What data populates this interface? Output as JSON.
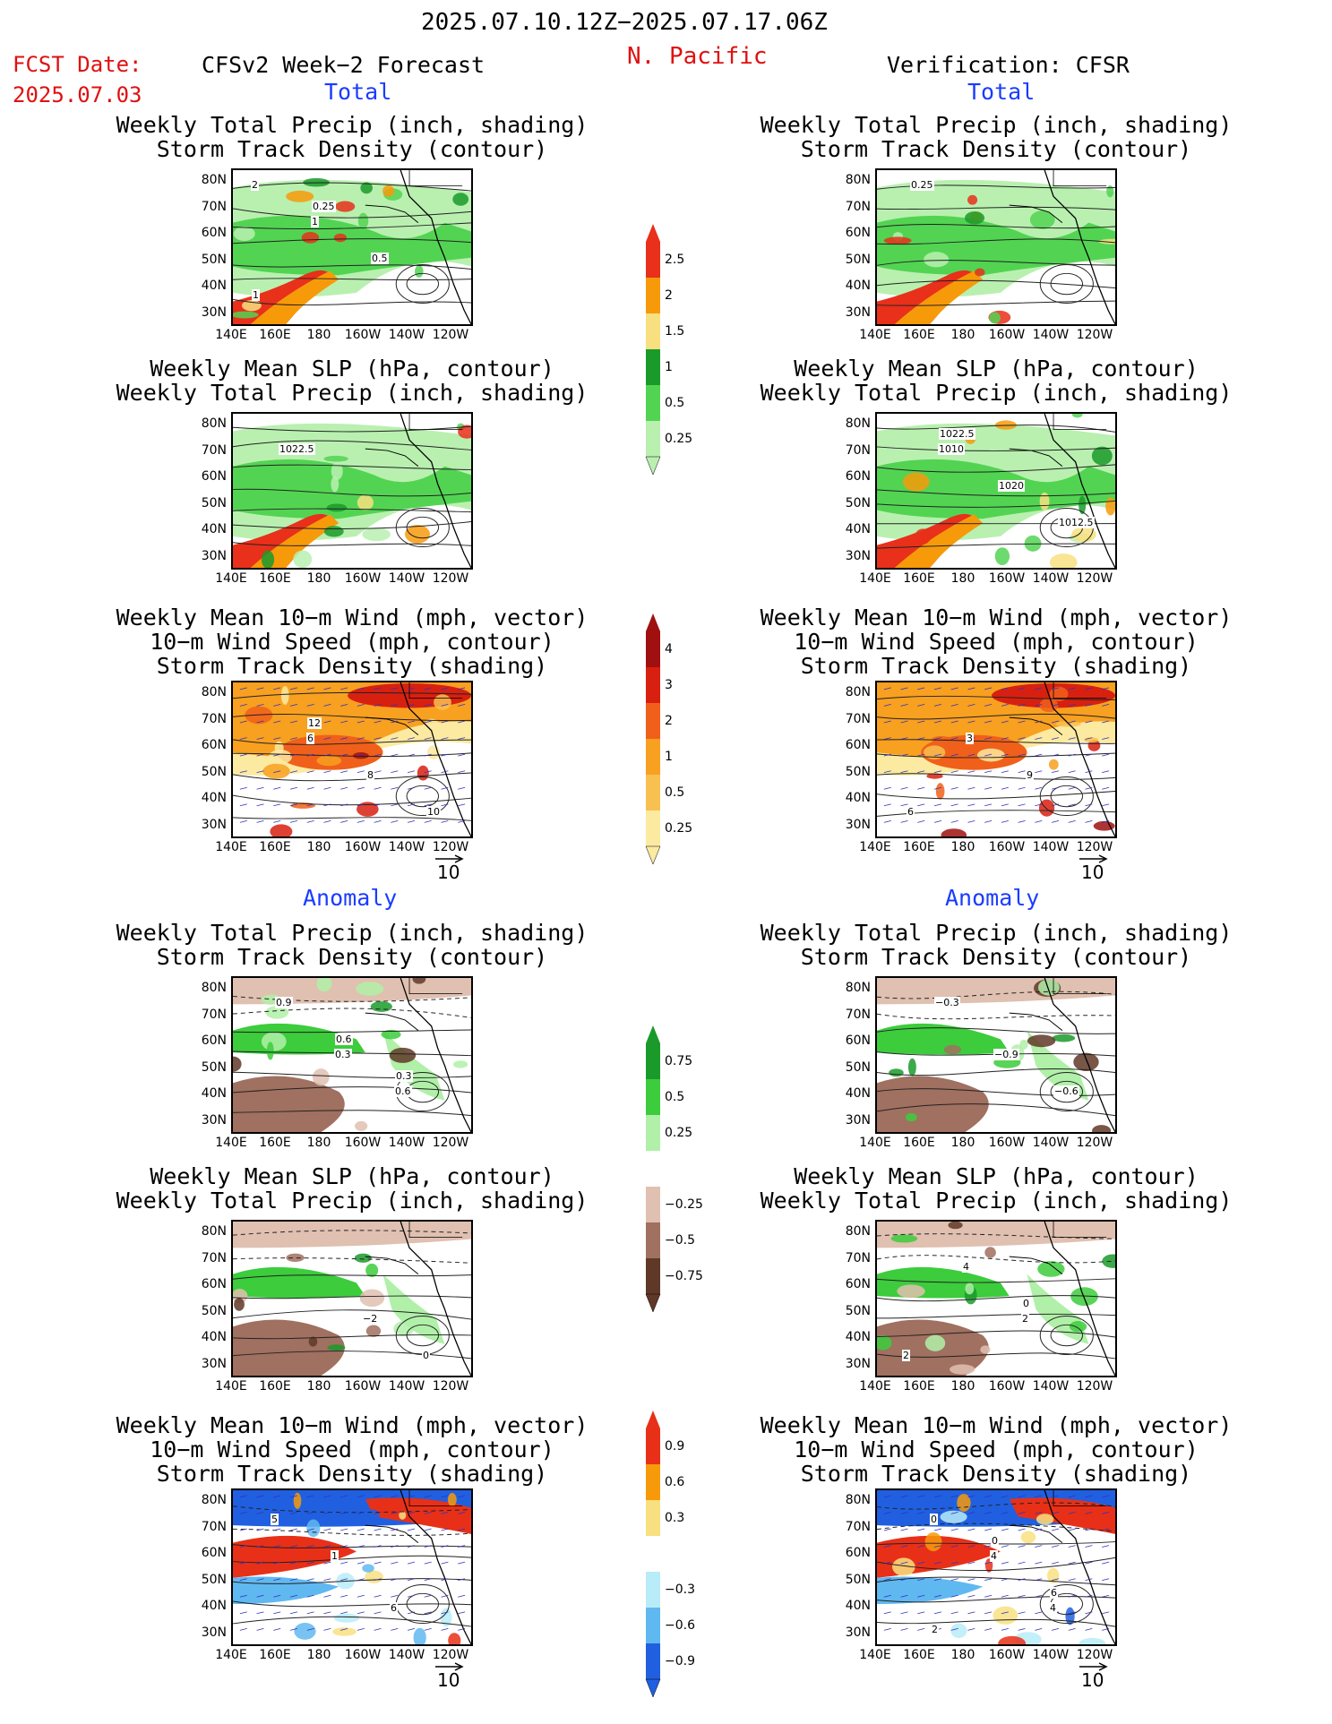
{
  "header": {
    "date_range": "2025.07.10.12Z−2025.07.17.06Z",
    "region": "N. Pacific",
    "fcst_label": "FCST Date:",
    "fcst_date": "2025.07.03",
    "left_title": "CFSv2 Week−2 Forecast",
    "right_title": "Verification: CFSR"
  },
  "sections": {
    "total": "Total",
    "anomaly": "Anomaly"
  },
  "panel_titles": {
    "precip_storm": "Weekly Total Precip (inch, shading)\nStorm Track Density (contour)",
    "slp_precip": "Weekly Mean SLP (hPa, contour)\nWeekly Total Precip (inch, shading)",
    "wind_storm": "Weekly Mean 10−m Wind (mph, vector)\n10−m Wind Speed (mph, contour)\nStorm Track Density (shading)"
  },
  "axes": {
    "lat_labels": [
      "80N",
      "70N",
      "60N",
      "50N",
      "40N",
      "30N"
    ],
    "lon_labels": [
      "140E",
      "160E",
      "180",
      "160W",
      "140W",
      "120W"
    ]
  },
  "vector_ref": "10",
  "colorbars": {
    "precip_total": {
      "labels": [
        "2.5",
        "2",
        "1.5",
        "1",
        "0.5",
        "0.25"
      ],
      "colors": [
        "#e8301a",
        "#f79a0a",
        "#f8e080",
        "#1a9a2a",
        "#52d452",
        "#b9f0b0"
      ]
    },
    "storm_total": {
      "labels": [
        "4",
        "3",
        "2",
        "1",
        "0.5",
        "0.25"
      ],
      "colors": [
        "#a01010",
        "#d82010",
        "#f0601a",
        "#f8a020",
        "#f8c050",
        "#fbeaa0"
      ]
    },
    "precip_anom": {
      "labels": [
        "0.75",
        "0.5",
        "0.25",
        "−0.25",
        "−0.5",
        "−0.75"
      ],
      "colors": [
        "#1a9a2a",
        "#3ccc3c",
        "#b0f0a8",
        "#ffffff",
        "#e0c0b0",
        "#a07060",
        "#603828"
      ]
    },
    "storm_anom": {
      "labels": [
        "0.9",
        "0.6",
        "0.3",
        "−0.3",
        "−0.6",
        "−0.9"
      ],
      "colors": [
        "#e83018",
        "#f79a0a",
        "#f8e080",
        "#ffffff",
        "#b8ecf8",
        "#60b8f0",
        "#2060e0"
      ]
    }
  },
  "contour_labels": {
    "fc_precip_total": [
      "2",
      "1",
      "0.5",
      "1",
      "0.25"
    ],
    "obs_precip_total": [
      "0.25"
    ],
    "fc_slp_total": [
      "1022.5"
    ],
    "obs_slp_total": [
      "1010",
      "1020",
      "1012.5",
      "1022.5"
    ],
    "fc_wind_total": [
      "6",
      "8",
      "10",
      "12"
    ],
    "obs_wind_total": [
      "3",
      "9",
      "6"
    ],
    "fc_precip_anom": [
      "0.3",
      "0.6",
      "0.9",
      "0.6",
      "0.3"
    ],
    "obs_precip_anom": [
      "−0.9",
      "−0.6",
      "−0.3"
    ],
    "fc_slp_anom": [
      "−2",
      "0"
    ],
    "obs_slp_anom": [
      "2",
      "2",
      "4",
      "0"
    ],
    "fc_wind_anom": [
      "6",
      "5",
      "1"
    ],
    "obs_wind_anom": [
      "4",
      "0",
      "4",
      "6",
      "2",
      "0"
    ]
  }
}
